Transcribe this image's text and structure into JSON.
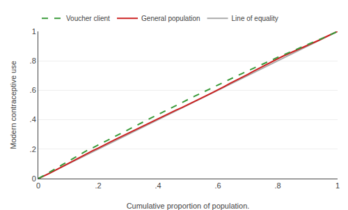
{
  "chart_data": {
    "type": "line",
    "xlabel": "Cumulative proportion of population.",
    "ylabel": "Modern contraceptive use",
    "xlim": [
      0,
      1
    ],
    "ylim": [
      0,
      1
    ],
    "xticks": [
      0,
      {
        "value": 0.2,
        "label": ".2"
      },
      {
        "value": 0.4,
        "label": ".4"
      },
      {
        "value": 0.6,
        "label": ".6"
      },
      {
        "value": 0.8,
        "label": ".8"
      },
      1
    ],
    "yticks": [
      0,
      {
        "value": 0.2,
        "label": ".2"
      },
      {
        "value": 0.4,
        "label": ".4"
      },
      {
        "value": 0.6,
        "label": ".6"
      },
      {
        "value": 0.8,
        "label": ".8"
      },
      1
    ],
    "grid": "y",
    "legend": "top",
    "series": [
      {
        "name": "Voucher client",
        "color": "#3a9a3a",
        "line_style": "dashed",
        "x": [
          0.0,
          0.02,
          0.04,
          0.06,
          0.08,
          0.1,
          0.12,
          0.14,
          0.16,
          0.18,
          0.2,
          0.22,
          0.24,
          0.26,
          0.28,
          0.3,
          0.32,
          0.34,
          0.36,
          0.38,
          0.4,
          0.42,
          0.44,
          0.46,
          0.48,
          0.5,
          0.52,
          0.54,
          0.56,
          0.58,
          0.6,
          0.62,
          0.64,
          0.66,
          0.68,
          0.7,
          0.72,
          0.74,
          0.76,
          0.78,
          0.8,
          0.82,
          0.84,
          0.86,
          0.88,
          0.9,
          0.92,
          0.94,
          0.96,
          0.98,
          1.0
        ],
        "values": [
          0.0,
          0.022,
          0.046,
          0.07,
          0.094,
          0.118,
          0.143,
          0.167,
          0.188,
          0.207,
          0.228,
          0.25,
          0.272,
          0.292,
          0.312,
          0.333,
          0.353,
          0.374,
          0.394,
          0.415,
          0.435,
          0.456,
          0.476,
          0.497,
          0.517,
          0.537,
          0.557,
          0.577,
          0.597,
          0.617,
          0.637,
          0.656,
          0.675,
          0.694,
          0.713,
          0.732,
          0.751,
          0.769,
          0.787,
          0.806,
          0.824,
          0.841,
          0.858,
          0.875,
          0.892,
          0.909,
          0.926,
          0.945,
          0.963,
          0.981,
          1.0
        ]
      },
      {
        "name": "General population",
        "color": "#cc2222",
        "line_style": "solid",
        "x": [
          0.0,
          0.02,
          0.04,
          0.06,
          0.08,
          0.1,
          0.12,
          0.14,
          0.16,
          0.18,
          0.2,
          0.22,
          0.24,
          0.26,
          0.28,
          0.3,
          0.32,
          0.34,
          0.36,
          0.38,
          0.4,
          0.42,
          0.44,
          0.46,
          0.48,
          0.5,
          0.52,
          0.54,
          0.56,
          0.58,
          0.6,
          0.62,
          0.64,
          0.66,
          0.68,
          0.7,
          0.72,
          0.74,
          0.76,
          0.78,
          0.8,
          0.82,
          0.84,
          0.86,
          0.88,
          0.9,
          0.92,
          0.94,
          0.96,
          0.98,
          1.0
        ],
        "values": [
          0.0,
          0.018,
          0.038,
          0.06,
          0.082,
          0.104,
          0.126,
          0.148,
          0.168,
          0.188,
          0.207,
          0.226,
          0.248,
          0.268,
          0.288,
          0.308,
          0.328,
          0.348,
          0.368,
          0.388,
          0.408,
          0.428,
          0.448,
          0.465,
          0.483,
          0.502,
          0.522,
          0.542,
          0.562,
          0.582,
          0.602,
          0.624,
          0.646,
          0.666,
          0.686,
          0.708,
          0.73,
          0.752,
          0.772,
          0.792,
          0.814,
          0.834,
          0.852,
          0.87,
          0.887,
          0.904,
          0.922,
          0.942,
          0.962,
          0.981,
          1.0
        ]
      },
      {
        "name": "Line of equality",
        "color": "#aaaaaa",
        "line_style": "solid",
        "x": [
          0,
          1
        ],
        "values": [
          0,
          1
        ]
      }
    ]
  }
}
